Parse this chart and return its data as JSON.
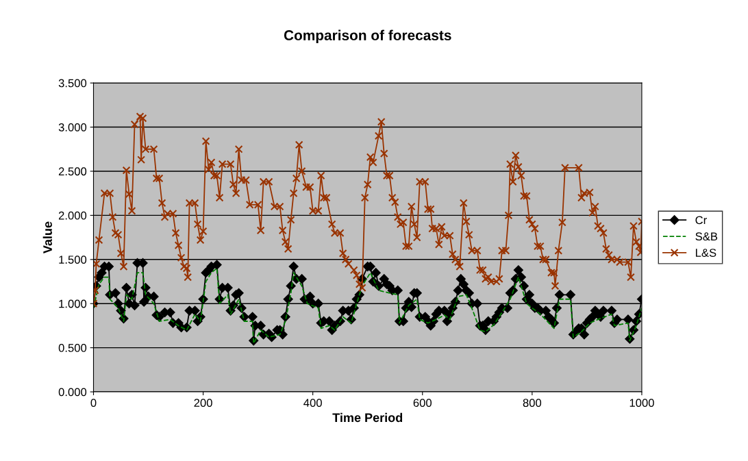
{
  "chart_data": {
    "type": "line",
    "title": "Comparison of forecasts",
    "xlabel": "Time Period",
    "ylabel": "Value",
    "xlim": [
      0,
      1000
    ],
    "xticks": [
      0,
      200,
      400,
      600,
      800,
      1000
    ],
    "ylim": [
      0,
      3.5
    ],
    "yticks": [
      {
        "value": 0,
        "label": "0.000"
      },
      {
        "value": 0.5,
        "label": "0.500"
      },
      {
        "value": 1,
        "label": "1.000"
      },
      {
        "value": 1.5,
        "label": "1.500"
      },
      {
        "value": 2,
        "label": "2.000"
      },
      {
        "value": 2.5,
        "label": "2.500"
      },
      {
        "value": 3,
        "label": "3.000"
      },
      {
        "value": 3.5,
        "label": "3.500"
      }
    ],
    "grid": "y",
    "legend": "right",
    "series": [
      {
        "name": "Cr",
        "color": "#000000",
        "marker": "diamond",
        "line_style": "solid",
        "x": [
          0,
          5,
          10,
          15,
          20,
          28,
          30,
          40,
          45,
          50,
          55,
          60,
          65,
          70,
          75,
          80,
          90,
          92,
          95,
          100,
          110,
          115,
          120,
          130,
          140,
          145,
          155,
          160,
          170,
          175,
          185,
          190,
          195,
          200,
          205,
          210,
          215,
          225,
          230,
          235,
          245,
          250,
          255,
          260,
          265,
          270,
          275,
          290,
          292,
          295,
          305,
          310,
          320,
          325,
          335,
          340,
          345,
          350,
          355,
          360,
          365,
          370,
          380,
          385,
          390,
          395,
          400,
          410,
          415,
          420,
          430,
          435,
          440,
          450,
          455,
          465,
          470,
          475,
          480,
          485,
          490,
          500,
          505,
          510,
          515,
          520,
          530,
          535,
          540,
          545,
          555,
          558,
          565,
          570,
          575,
          580,
          585,
          590,
          595,
          605,
          610,
          615,
          620,
          625,
          630,
          640,
          645,
          650,
          655,
          660,
          665,
          670,
          675,
          680,
          685,
          690,
          700,
          705,
          710,
          715,
          720,
          730,
          735,
          740,
          745,
          755,
          760,
          765,
          770,
          775,
          780,
          785,
          790,
          795,
          800,
          805,
          810,
          815,
          825,
          830,
          835,
          840,
          845,
          850,
          870,
          875,
          880,
          885,
          890,
          895,
          900,
          905,
          910,
          915,
          920,
          925,
          930,
          945,
          950,
          955,
          975,
          978,
          985,
          990,
          995,
          1000
        ],
        "values": [
          1.0,
          1.2,
          1.3,
          1.35,
          1.42,
          1.42,
          1.1,
          1.12,
          1.0,
          0.92,
          0.83,
          1.18,
          1.0,
          1.1,
          0.98,
          1.46,
          1.46,
          1.02,
          1.18,
          1.08,
          1.08,
          0.87,
          0.85,
          0.9,
          0.9,
          0.78,
          0.78,
          0.73,
          0.73,
          0.92,
          0.92,
          0.8,
          0.85,
          1.05,
          1.35,
          1.38,
          1.42,
          1.44,
          1.05,
          1.18,
          1.18,
          0.92,
          0.98,
          1.1,
          1.12,
          0.95,
          0.85,
          0.85,
          0.58,
          0.75,
          0.75,
          0.65,
          0.66,
          0.62,
          0.7,
          0.7,
          0.65,
          0.85,
          1.05,
          1.2,
          1.42,
          1.28,
          1.28,
          1.05,
          1.05,
          1.08,
          1.0,
          1.0,
          0.78,
          0.8,
          0.8,
          0.7,
          0.75,
          0.8,
          0.92,
          0.92,
          0.82,
          0.95,
          1.05,
          1.1,
          1.28,
          1.42,
          1.42,
          1.25,
          1.35,
          1.2,
          1.28,
          1.22,
          1.2,
          1.15,
          1.15,
          0.8,
          0.8,
          0.95,
          1.02,
          0.96,
          1.12,
          1.12,
          0.85,
          0.85,
          0.8,
          0.75,
          0.8,
          0.88,
          0.92,
          0.92,
          0.8,
          0.88,
          0.95,
          1.02,
          1.15,
          1.28,
          1.22,
          1.15,
          1.12,
          1.0,
          1.0,
          0.75,
          0.75,
          0.7,
          0.8,
          0.8,
          0.85,
          0.9,
          0.95,
          0.95,
          1.12,
          1.15,
          1.28,
          1.38,
          1.3,
          1.2,
          1.05,
          1.1,
          1.0,
          0.95,
          0.95,
          0.92,
          0.92,
          0.85,
          0.82,
          0.78,
          0.95,
          1.1,
          1.1,
          0.65,
          0.68,
          0.72,
          0.72,
          0.65,
          0.78,
          0.82,
          0.85,
          0.92,
          0.88,
          0.85,
          0.92,
          0.92,
          0.78,
          0.82,
          0.82,
          0.6,
          0.7,
          0.8,
          0.88,
          1.05
        ]
      },
      {
        "name": "S&B",
        "color": "#008000",
        "marker": "none",
        "line_style": "dashed",
        "x": [
          0,
          10,
          20,
          28,
          30,
          45,
          55,
          60,
          70,
          80,
          90,
          95,
          110,
          120,
          140,
          155,
          170,
          185,
          195,
          205,
          215,
          225,
          230,
          245,
          250,
          265,
          275,
          290,
          292,
          305,
          320,
          340,
          350,
          360,
          365,
          380,
          390,
          410,
          415,
          430,
          440,
          455,
          470,
          480,
          490,
          505,
          520,
          540,
          555,
          558,
          575,
          590,
          595,
          610,
          625,
          640,
          650,
          665,
          680,
          690,
          705,
          715,
          730,
          745,
          760,
          775,
          790,
          800,
          815,
          840,
          850,
          870,
          875,
          890,
          905,
          920,
          945,
          950,
          975,
          978,
          990,
          1000
        ],
        "values": [
          0.95,
          1.22,
          1.3,
          1.3,
          1.05,
          0.95,
          0.8,
          1.1,
          1.05,
          1.35,
          1.35,
          1.1,
          1.0,
          0.8,
          0.82,
          0.75,
          0.7,
          0.88,
          0.8,
          1.25,
          1.35,
          1.4,
          1.0,
          1.1,
          0.88,
          1.05,
          0.8,
          0.8,
          0.55,
          0.7,
          0.62,
          0.65,
          0.8,
          1.12,
          1.35,
          1.2,
          1.0,
          0.95,
          0.72,
          0.75,
          0.7,
          0.85,
          0.78,
          1.0,
          1.2,
          1.35,
          1.15,
          1.12,
          1.1,
          0.78,
          0.98,
          1.05,
          0.82,
          0.78,
          0.82,
          0.87,
          0.82,
          1.08,
          1.1,
          0.95,
          0.7,
          0.68,
          0.76,
          0.9,
          1.05,
          1.3,
          1.0,
          0.95,
          0.88,
          0.72,
          1.05,
          1.05,
          0.62,
          0.68,
          0.78,
          0.82,
          0.88,
          0.75,
          0.78,
          0.58,
          0.75,
          0.95
        ]
      },
      {
        "name": "L&S",
        "color": "#993300",
        "marker": "cross",
        "line_style": "solid",
        "x": [
          0,
          3,
          5,
          10,
          20,
          30,
          35,
          40,
          45,
          50,
          55,
          60,
          65,
          70,
          75,
          85,
          87,
          90,
          95,
          110,
          115,
          120,
          125,
          130,
          135,
          145,
          150,
          155,
          160,
          165,
          170,
          172,
          175,
          185,
          190,
          195,
          200,
          205,
          210,
          215,
          220,
          225,
          230,
          235,
          250,
          255,
          260,
          265,
          270,
          278,
          285,
          300,
          305,
          310,
          320,
          330,
          340,
          345,
          350,
          355,
          360,
          365,
          370,
          375,
          380,
          388,
          395,
          400,
          410,
          415,
          420,
          425,
          435,
          440,
          450,
          455,
          460,
          465,
          475,
          480,
          485,
          490,
          495,
          500,
          505,
          510,
          520,
          525,
          530,
          535,
          540,
          545,
          550,
          555,
          560,
          565,
          570,
          575,
          580,
          585,
          590,
          595,
          605,
          610,
          615,
          618,
          625,
          630,
          635,
          640,
          650,
          655,
          660,
          665,
          668,
          675,
          680,
          685,
          690,
          700,
          705,
          710,
          715,
          720,
          725,
          735,
          740,
          745,
          752,
          757,
          760,
          765,
          770,
          775,
          780,
          785,
          790,
          795,
          800,
          805,
          810,
          815,
          820,
          825,
          835,
          840,
          842,
          848,
          855,
          860,
          885,
          890,
          895,
          905,
          910,
          915,
          920,
          925,
          930,
          935,
          940,
          945,
          955,
          960,
          975,
          980,
          985,
          990,
          995,
          998,
          1000
        ],
        "values": [
          1.0,
          1.15,
          1.45,
          1.72,
          2.25,
          2.25,
          1.98,
          1.8,
          1.78,
          1.57,
          1.42,
          2.51,
          2.24,
          2.05,
          3.03,
          3.12,
          2.63,
          3.1,
          2.75,
          2.75,
          2.42,
          2.42,
          2.14,
          1.98,
          2.02,
          2.02,
          1.8,
          1.66,
          1.52,
          1.42,
          1.4,
          1.3,
          2.14,
          2.14,
          1.9,
          1.72,
          1.82,
          2.84,
          2.52,
          2.6,
          2.45,
          2.45,
          2.2,
          2.58,
          2.58,
          2.35,
          2.25,
          2.75,
          2.4,
          2.4,
          2.12,
          2.12,
          1.83,
          2.38,
          2.38,
          2.1,
          2.1,
          1.83,
          1.7,
          1.62,
          1.95,
          2.25,
          2.42,
          2.8,
          2.5,
          2.32,
          2.32,
          2.05,
          2.05,
          2.45,
          2.2,
          2.2,
          1.9,
          1.8,
          1.8,
          1.57,
          1.5,
          1.45,
          1.38,
          1.32,
          1.22,
          1.18,
          2.2,
          2.35,
          2.66,
          2.6,
          2.9,
          3.06,
          2.7,
          2.45,
          2.45,
          2.2,
          2.15,
          1.98,
          1.9,
          1.92,
          1.65,
          1.65,
          2.1,
          1.9,
          1.75,
          2.38,
          2.38,
          2.07,
          2.07,
          1.85,
          1.85,
          1.67,
          1.87,
          1.77,
          1.77,
          1.56,
          1.5,
          1.47,
          1.42,
          2.14,
          1.93,
          1.78,
          1.6,
          1.6,
          1.38,
          1.38,
          1.28,
          1.3,
          1.25,
          1.25,
          1.28,
          1.6,
          1.6,
          2.0,
          2.58,
          2.38,
          2.68,
          2.55,
          2.45,
          2.22,
          2.22,
          1.95,
          1.9,
          1.85,
          1.65,
          1.65,
          1.5,
          1.5,
          1.35,
          1.35,
          1.2,
          1.6,
          1.92,
          2.54,
          2.54,
          2.2,
          2.25,
          2.26,
          2.03,
          2.1,
          1.88,
          1.85,
          1.8,
          1.62,
          1.55,
          1.5,
          1.5,
          1.47,
          1.47,
          1.3,
          1.88,
          1.7,
          1.65,
          1.58,
          1.93
        ]
      }
    ]
  }
}
